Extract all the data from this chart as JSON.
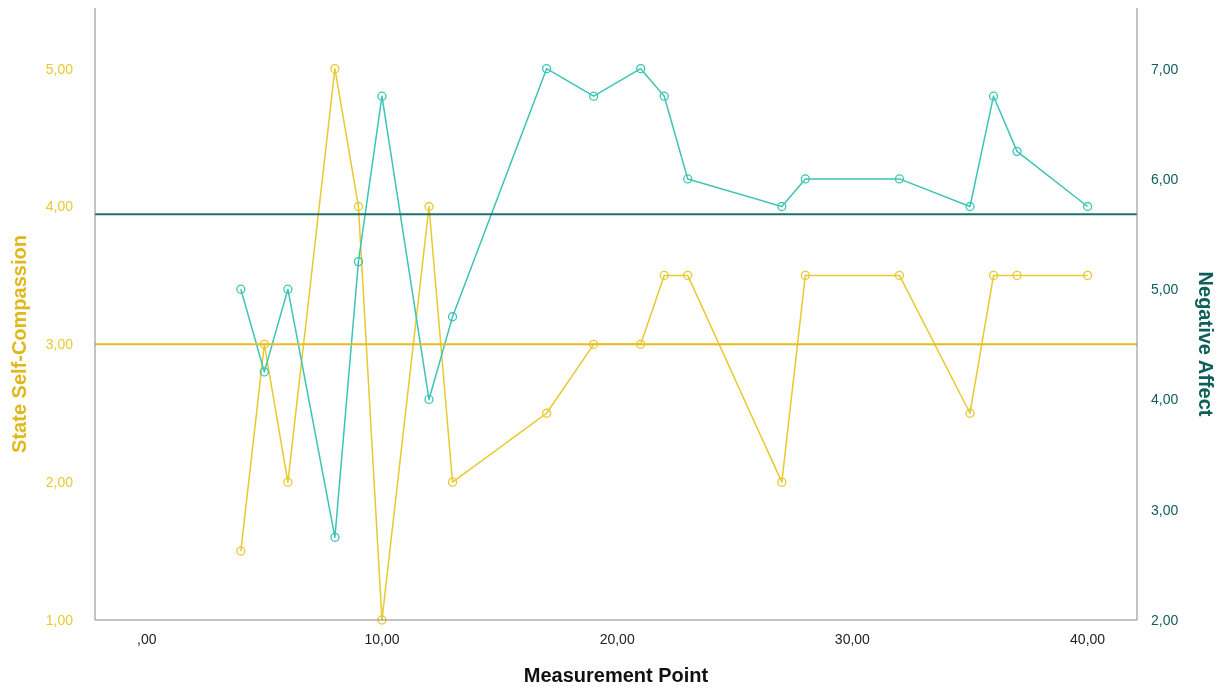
{
  "chart_data": {
    "type": "line",
    "xlabel": "Measurement Point",
    "ylabel": "State Self-Compassion",
    "y2label": "Negative Affect",
    "xlim": [
      -2.2,
      42.1
    ],
    "xticks": [
      {
        "value": 0,
        "label": ",00"
      },
      {
        "value": 10,
        "label": "10,00"
      },
      {
        "value": 20,
        "label": "20,00"
      },
      {
        "value": 30,
        "label": "30,00"
      },
      {
        "value": 40,
        "label": "40,00"
      }
    ],
    "ylim": [
      1,
      5.44
    ],
    "yticks": [
      {
        "value": 1,
        "label": "1,00"
      },
      {
        "value": 2,
        "label": "2,00"
      },
      {
        "value": 3,
        "label": "3,00"
      },
      {
        "value": 4,
        "label": "4,00"
      },
      {
        "value": 5,
        "label": "5,00"
      }
    ],
    "y2lim": [
      2,
      7.55
    ],
    "y2ticks": [
      {
        "value": 2,
        "label": "2,00"
      },
      {
        "value": 3,
        "label": "3,00"
      },
      {
        "value": 4,
        "label": "4,00"
      },
      {
        "value": 5,
        "label": "5,00"
      },
      {
        "value": 6,
        "label": "6,00"
      },
      {
        "value": 7,
        "label": "7,00"
      }
    ],
    "marker": "circle",
    "grid": false,
    "series": [
      {
        "color": "#e8c930",
        "x": [
          4,
          5,
          6,
          8,
          9,
          10,
          12,
          13,
          17,
          19,
          21,
          22,
          23,
          27,
          28,
          32,
          35,
          36,
          37,
          40
        ],
        "values": [
          1.5,
          3,
          2,
          5,
          4,
          1,
          4,
          2,
          2.5,
          3,
          3,
          3.5,
          3.5,
          2,
          3.5,
          3.5,
          2.5,
          3.5,
          3.5,
          3.5
        ]
      },
      {
        "color": "#3cc5b5",
        "axis": "y2",
        "x": [
          4,
          5,
          6,
          8,
          9,
          10,
          12,
          13,
          17,
          19,
          21,
          22,
          23,
          27,
          28,
          32,
          35,
          36,
          37,
          40
        ],
        "values": [
          5,
          4.25,
          5,
          2.75,
          5.25,
          6.75,
          4,
          4.75,
          7,
          6.75,
          7,
          6.75,
          6,
          5.75,
          6,
          6,
          5.75,
          6.75,
          6.25,
          5.75
        ]
      }
    ],
    "ref_lines": [
      {
        "axis": "y",
        "value": 3,
        "color": "#e6bc1e"
      },
      {
        "axis": "y2",
        "value": 5.68,
        "color": "#1f6f6b"
      }
    ]
  }
}
